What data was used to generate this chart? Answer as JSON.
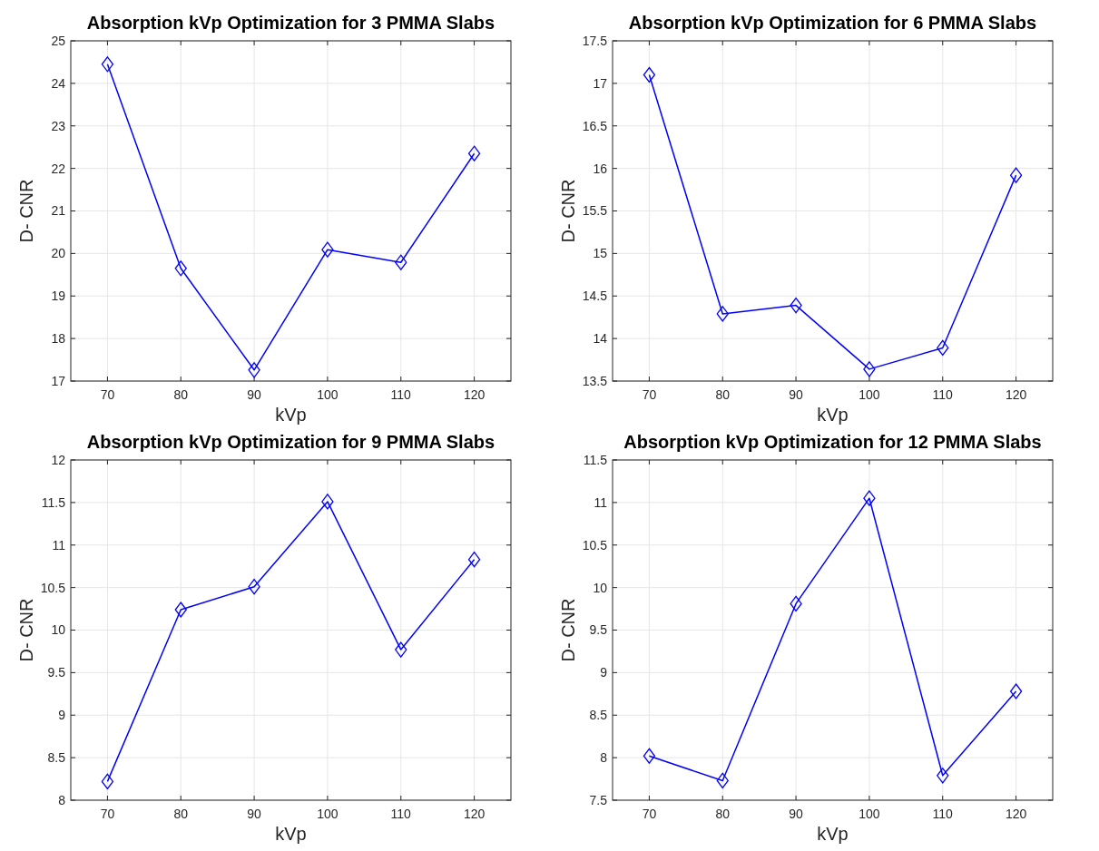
{
  "chart_data": [
    {
      "type": "line",
      "title": "Absorption kVp Optimization for 3 PMMA Slabs",
      "xlabel": "kVp",
      "ylabel": "D- CNR",
      "x": [
        70,
        80,
        90,
        100,
        110,
        120
      ],
      "series": [
        {
          "color": "#0000ff",
          "values": [
            24.45,
            19.65,
            17.26,
            20.09,
            19.79,
            22.35
          ]
        }
      ],
      "xlim": [
        65,
        125
      ],
      "xticks": [
        70,
        80,
        90,
        100,
        110,
        120
      ],
      "ylim": [
        17,
        25
      ],
      "yticks": [
        17,
        18,
        19,
        20,
        21,
        22,
        23,
        24,
        25
      ],
      "grid": true,
      "marker": "diamond",
      "line_style": "solid"
    },
    {
      "type": "line",
      "title": "Absorption kVp Optimization for 6 PMMA Slabs",
      "xlabel": "kVp",
      "ylabel": "D- CNR",
      "x": [
        70,
        80,
        90,
        100,
        110,
        120
      ],
      "series": [
        {
          "color": "#0000ff",
          "values": [
            17.1,
            14.29,
            14.39,
            13.64,
            13.89,
            15.92
          ]
        }
      ],
      "xlim": [
        65,
        125
      ],
      "xticks": [
        70,
        80,
        90,
        100,
        110,
        120
      ],
      "ylim": [
        13.5,
        17.5
      ],
      "yticks": [
        13.5,
        14,
        14.5,
        15,
        15.5,
        16,
        16.5,
        17,
        17.5
      ],
      "grid": true,
      "marker": "diamond",
      "line_style": "solid"
    },
    {
      "type": "line",
      "title": "Absorption kVp Optimization for 9 PMMA Slabs",
      "xlabel": "kVp",
      "ylabel": "D- CNR",
      "x": [
        70,
        80,
        90,
        100,
        110,
        120
      ],
      "series": [
        {
          "color": "#0000ff",
          "values": [
            8.22,
            10.24,
            10.51,
            11.51,
            9.77,
            10.83
          ]
        }
      ],
      "xlim": [
        65,
        125
      ],
      "xticks": [
        70,
        80,
        90,
        100,
        110,
        120
      ],
      "ylim": [
        8,
        12
      ],
      "yticks": [
        8,
        8.5,
        9,
        9.5,
        10,
        10.5,
        11,
        11.5,
        12
      ],
      "grid": true,
      "marker": "diamond",
      "line_style": "solid"
    },
    {
      "type": "line",
      "title": "Absorption kVp Optimization for 12 PMMA Slabs",
      "xlabel": "kVp",
      "ylabel": "D- CNR",
      "x": [
        70,
        80,
        90,
        100,
        110,
        120
      ],
      "series": [
        {
          "color": "#0000ff",
          "values": [
            8.02,
            7.73,
            9.81,
            11.05,
            7.79,
            8.78
          ]
        }
      ],
      "xlim": [
        65,
        125
      ],
      "xticks": [
        70,
        80,
        90,
        100,
        110,
        120
      ],
      "ylim": [
        7.5,
        11.5
      ],
      "yticks": [
        7.5,
        8,
        8.5,
        9,
        9.5,
        10,
        10.5,
        11,
        11.5
      ],
      "grid": true,
      "marker": "diamond",
      "line_style": "solid"
    }
  ]
}
